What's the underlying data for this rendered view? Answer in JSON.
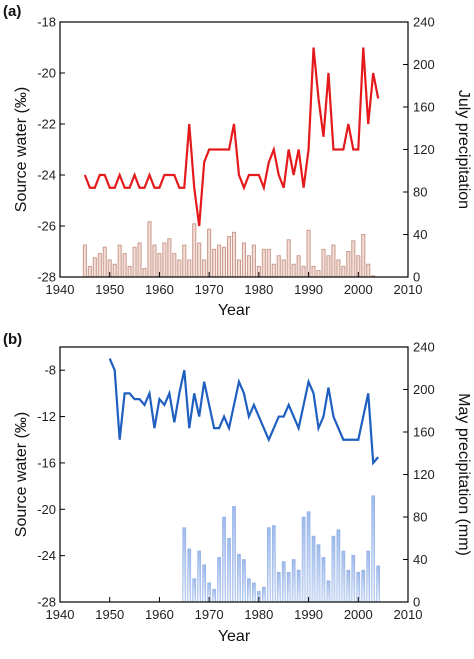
{
  "chart_data": [
    {
      "panel_label": "(a)",
      "type": "line+bar",
      "xlabel": "Year",
      "ylabel_left": "Source water (‰)",
      "ylabel_right": "July precipitation",
      "xlim": [
        1940,
        2010
      ],
      "ylim_left": [
        -28,
        -18
      ],
      "ylim_right": [
        0,
        240
      ],
      "x_ticks": [
        1940,
        1950,
        1960,
        1970,
        1980,
        1990,
        2000,
        2010
      ],
      "y_ticks_left": [
        -28,
        -26,
        -24,
        -22,
        -20,
        -18
      ],
      "y_ticks_right": [
        0,
        40,
        80,
        120,
        160,
        200,
        240
      ],
      "line_color": "#e41a1c",
      "bar_color": "#c99a8c",
      "line_series": {
        "x": [
          1945,
          1946,
          1947,
          1948,
          1949,
          1950,
          1951,
          1952,
          1953,
          1954,
          1955,
          1956,
          1957,
          1958,
          1959,
          1960,
          1961,
          1962,
          1963,
          1964,
          1965,
          1966,
          1967,
          1968,
          1969,
          1970,
          1971,
          1972,
          1973,
          1974,
          1975,
          1976,
          1977,
          1978,
          1979,
          1980,
          1981,
          1982,
          1983,
          1984,
          1985,
          1986,
          1987,
          1988,
          1989,
          1990,
          1991,
          1992,
          1993,
          1994,
          1995,
          1996,
          1997,
          1998,
          1999,
          2000,
          2001,
          2002,
          2003,
          2004
        ],
        "y": [
          -24,
          -24.5,
          -24.5,
          -24,
          -24,
          -24.5,
          -24.5,
          -24,
          -24.5,
          -24.5,
          -24,
          -24.5,
          -24.5,
          -24,
          -24.5,
          -24.5,
          -24,
          -24,
          -24,
          -24.5,
          -24.5,
          -22,
          -24.5,
          -26,
          -23.5,
          -23,
          -23,
          -23,
          -23,
          -23,
          -22,
          -24,
          -24.5,
          -24,
          -24,
          -24,
          -24.5,
          -23.5,
          -23,
          -24,
          -24.5,
          -23,
          -24,
          -23,
          -24.5,
          -23,
          -19,
          -21,
          -22.5,
          -20,
          -23,
          -23,
          -23,
          -22,
          -23,
          -23,
          -19,
          -22,
          -20,
          -21
        ]
      },
      "bar_series": {
        "x": [
          1945,
          1946,
          1947,
          1948,
          1949,
          1950,
          1951,
          1952,
          1953,
          1954,
          1955,
          1956,
          1957,
          1958,
          1959,
          1960,
          1961,
          1962,
          1963,
          1964,
          1965,
          1966,
          1967,
          1968,
          1969,
          1970,
          1971,
          1972,
          1973,
          1974,
          1975,
          1976,
          1977,
          1978,
          1979,
          1980,
          1981,
          1982,
          1983,
          1984,
          1985,
          1986,
          1987,
          1988,
          1989,
          1990,
          1991,
          1992,
          1993,
          1994,
          1995,
          1996,
          1997,
          1998,
          1999,
          2000,
          2001,
          2002,
          2003,
          2004
        ],
        "y": [
          30,
          10,
          18,
          22,
          28,
          16,
          12,
          30,
          22,
          10,
          28,
          32,
          8,
          52,
          30,
          22,
          32,
          36,
          22,
          16,
          30,
          16,
          50,
          32,
          16,
          45,
          26,
          30,
          28,
          38,
          42,
          16,
          32,
          20,
          30,
          10,
          26,
          26,
          12,
          20,
          16,
          35,
          12,
          20,
          10,
          44,
          10,
          6,
          26,
          20,
          30,
          16,
          10,
          24,
          34,
          20,
          40,
          12,
          1,
          0
        ]
      }
    },
    {
      "panel_label": "(b)",
      "type": "line+bar",
      "xlabel": "Year",
      "ylabel_left": "Source water (‰)",
      "ylabel_right": "May precipitation (mm)",
      "xlim": [
        1940,
        2010
      ],
      "ylim_left": [
        -28,
        -6
      ],
      "ylim_right": [
        0,
        240
      ],
      "x_ticks": [
        1940,
        1950,
        1960,
        1970,
        1980,
        1990,
        2000,
        2010
      ],
      "y_ticks_left": [
        -28,
        -24,
        -20,
        -16,
        -12,
        -8
      ],
      "y_ticks_right": [
        0,
        40,
        80,
        120,
        160,
        200,
        240
      ],
      "line_color": "#1f5fbf",
      "bar_color": "#8fb0e6",
      "line_series": {
        "x": [
          1950,
          1951,
          1952,
          1953,
          1954,
          1955,
          1956,
          1957,
          1958,
          1959,
          1960,
          1961,
          1962,
          1963,
          1964,
          1965,
          1966,
          1967,
          1968,
          1969,
          1970,
          1971,
          1972,
          1973,
          1974,
          1975,
          1976,
          1977,
          1978,
          1979,
          1980,
          1981,
          1982,
          1983,
          1984,
          1985,
          1986,
          1987,
          1988,
          1989,
          1990,
          1991,
          1992,
          1993,
          1994,
          1995,
          1996,
          1997,
          1998,
          1999,
          2000,
          2001,
          2002,
          2003,
          2004
        ],
        "y": [
          -7,
          -8,
          -14,
          -10,
          -10,
          -10.5,
          -10.5,
          -11,
          -10,
          -13,
          -10.5,
          -11,
          -10,
          -12.5,
          -10,
          -8,
          -13,
          -10,
          -12,
          -9,
          -11,
          -13,
          -13,
          -12,
          -13,
          -11,
          -9,
          -10,
          -12,
          -11,
          -12,
          -13,
          -14,
          -13,
          -12,
          -12,
          -11,
          -12,
          -13,
          -11,
          -9,
          -10,
          -13,
          -12,
          -9.5,
          -12,
          -13,
          -14,
          -14,
          -14,
          -14,
          -12,
          -10,
          -16,
          -15.5
        ]
      },
      "bar_series": {
        "x": [
          1965,
          1966,
          1967,
          1968,
          1969,
          1970,
          1971,
          1972,
          1973,
          1974,
          1975,
          1976,
          1977,
          1978,
          1979,
          1980,
          1981,
          1982,
          1983,
          1984,
          1985,
          1986,
          1987,
          1988,
          1989,
          1990,
          1991,
          1992,
          1993,
          1994,
          1995,
          1996,
          1997,
          1998,
          1999,
          2000,
          2001,
          2002,
          2003,
          2004
        ],
        "y": [
          70,
          50,
          22,
          48,
          35,
          18,
          12,
          42,
          80,
          60,
          90,
          45,
          40,
          22,
          18,
          10,
          14,
          70,
          72,
          28,
          38,
          28,
          40,
          30,
          80,
          85,
          62,
          54,
          42,
          20,
          62,
          68,
          48,
          30,
          44,
          28,
          30,
          48,
          100,
          34
        ]
      }
    }
  ]
}
